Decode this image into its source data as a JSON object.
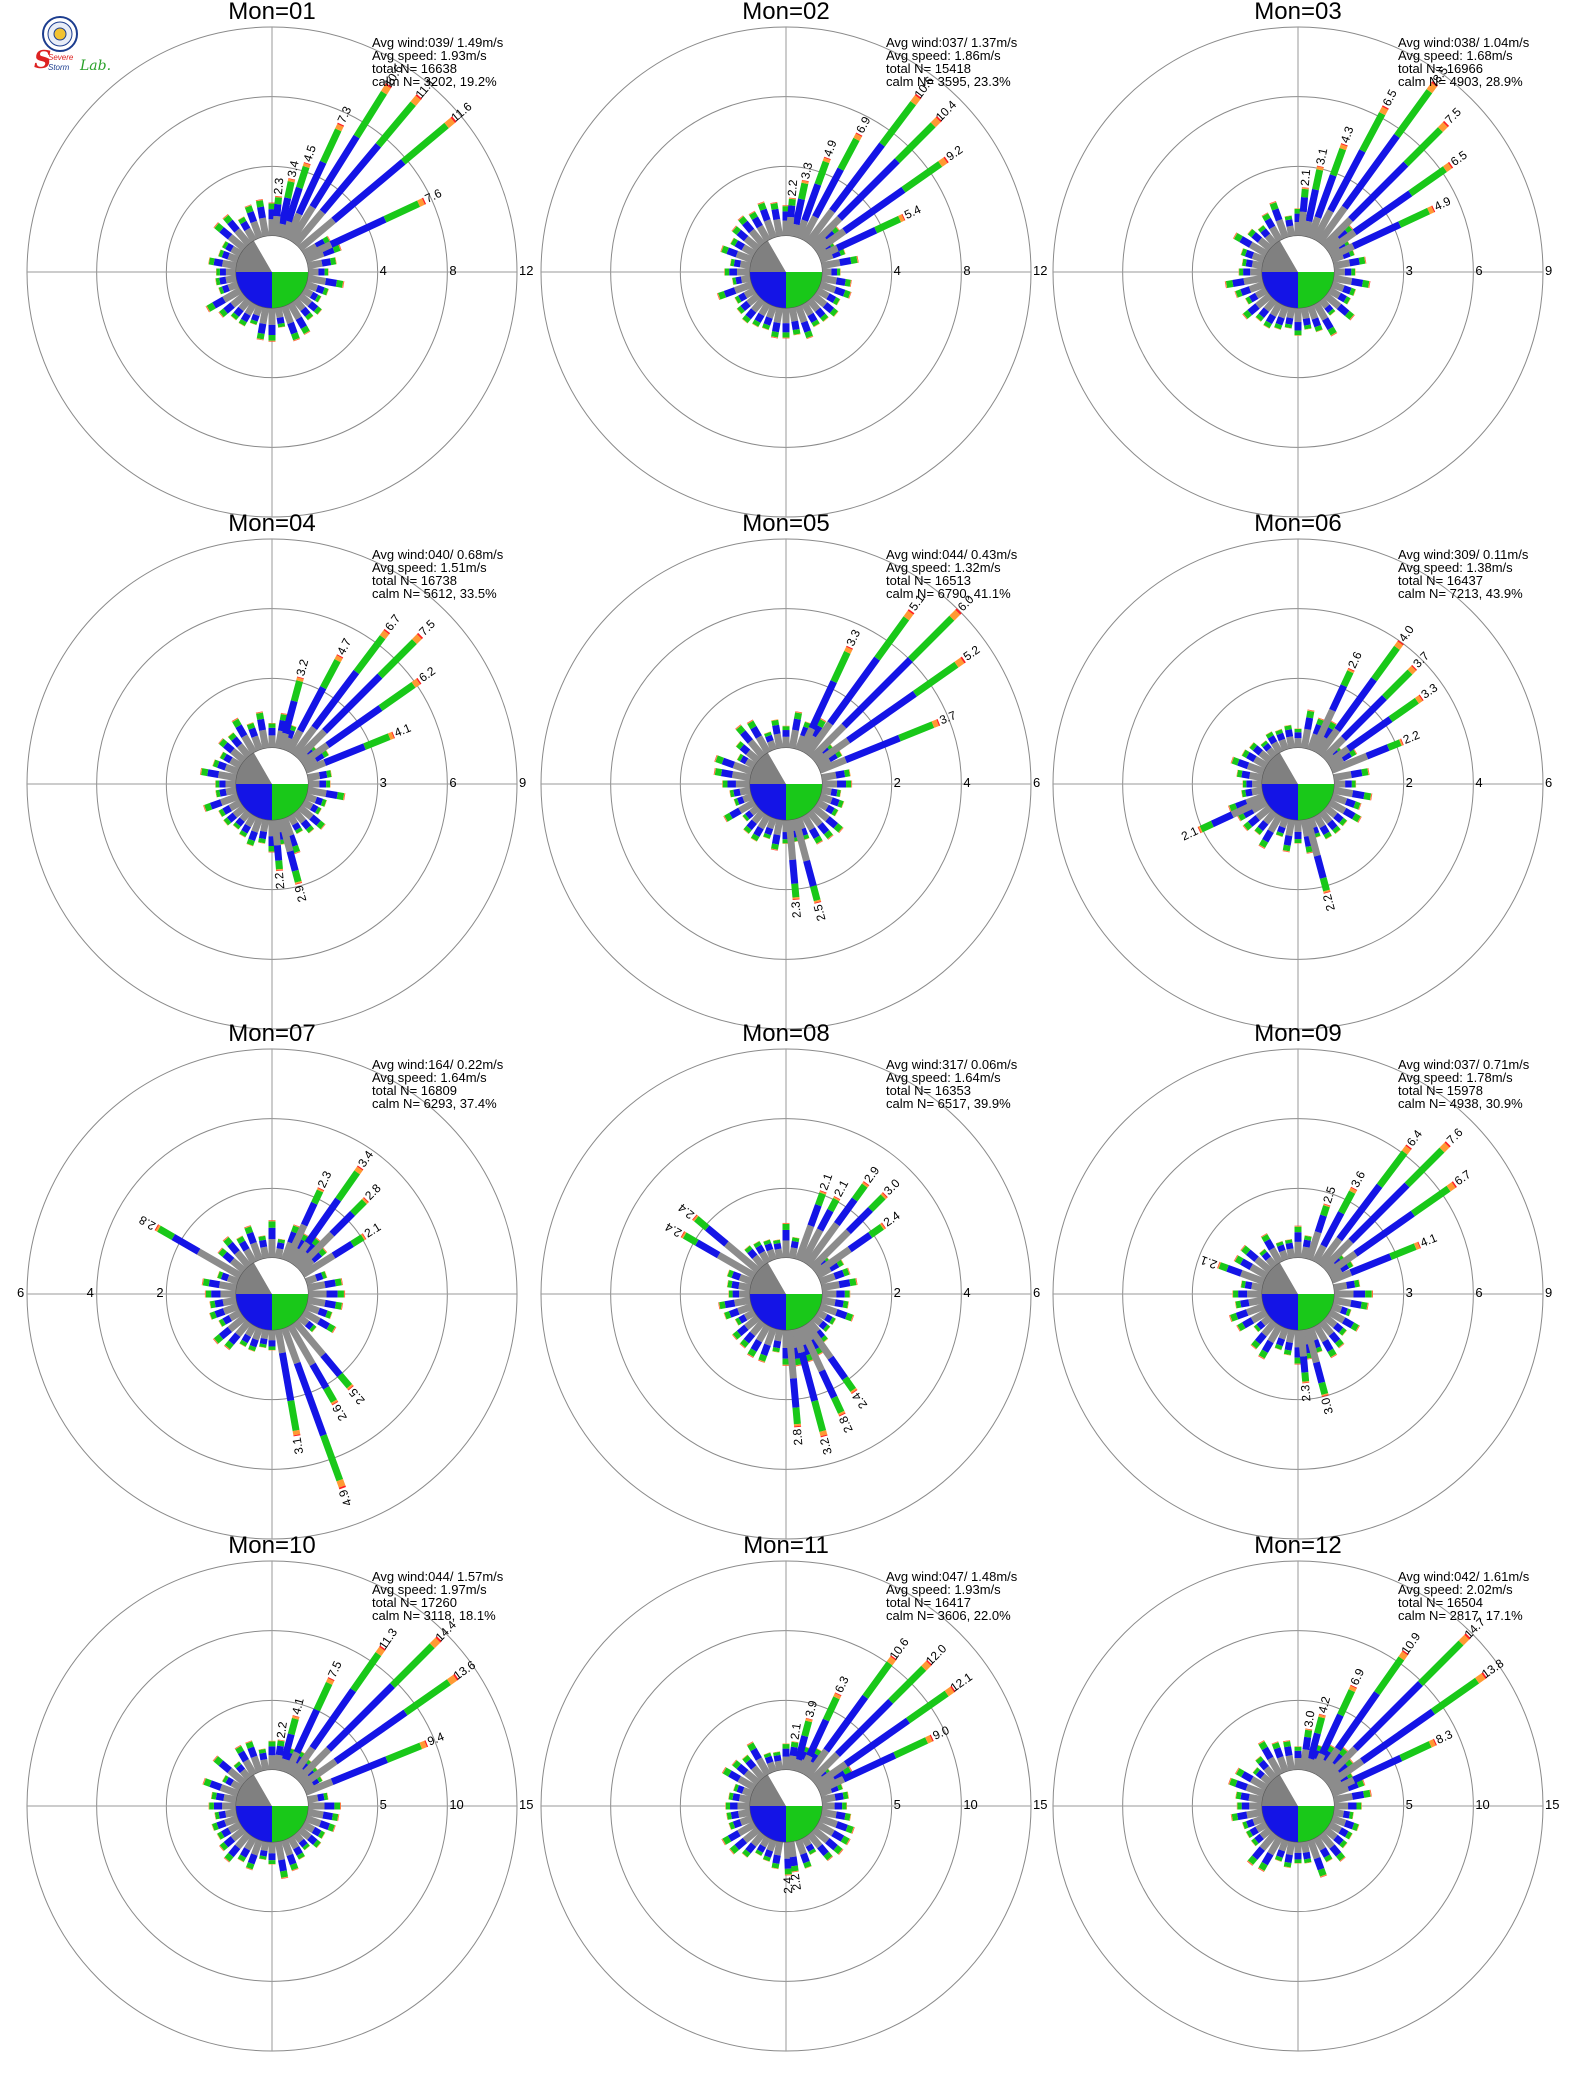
{
  "logo": {
    "line1": "Severe",
    "line2": "Storm",
    "line3": "Lab."
  },
  "labels": {
    "avg_wind": "Avg wind:",
    "avg_speed": "Avg speed: ",
    "total_n": "total N=",
    "calm_n": "calm N="
  },
  "colors": {
    "calm_ring": "#808080",
    "bin1": "#8c8c8c",
    "bin2": "#1414e6",
    "bin3": "#19c819",
    "bin4": "#ff9933",
    "bin5": "#ff2020",
    "axis": "#9a9a9a"
  },
  "chart_data": [
    {
      "type": "wind-rose",
      "title": "Mon=01",
      "avg_wind": "039/ 1.49m/s",
      "avg_speed": "1.93m/s",
      "total_n": "16638",
      "calm_n": "3202,",
      "calm_pct": "19.2%",
      "rmax": 12,
      "ticks": [
        "4",
        "8",
        "12"
      ],
      "ticks_side": "right",
      "petals": [
        {
          "dir": 50,
          "value": 11.6,
          "label": "11.6"
        },
        {
          "dir": 40,
          "value": 11.1,
          "label": "11.1"
        },
        {
          "dir": 32,
          "value": 10.6,
          "label": "10.6"
        },
        {
          "dir": 25,
          "value": 7.3,
          "label": "7.3"
        },
        {
          "dir": 18,
          "value": 4.5,
          "label": "4.5"
        },
        {
          "dir": 12,
          "value": 3.4,
          "label": "3.4"
        },
        {
          "dir": 5,
          "value": 2.3,
          "label": "2.3"
        },
        {
          "dir": 65,
          "value": 7.6,
          "label": "7.6"
        }
      ]
    },
    {
      "type": "wind-rose",
      "title": "Mon=02",
      "avg_wind": "037/ 1.37m/s",
      "avg_speed": "1.86m/s",
      "total_n": "15418",
      "calm_n": "3595,",
      "calm_pct": "23.3%",
      "rmax": 12,
      "ticks": [
        "4",
        "8",
        "12"
      ],
      "ticks_side": "right",
      "petals": [
        {
          "dir": 55,
          "value": 9.2,
          "label": "9.2"
        },
        {
          "dir": 45,
          "value": 10.4,
          "label": "10.4"
        },
        {
          "dir": 37,
          "value": 10.6,
          "label": "10.6"
        },
        {
          "dir": 28,
          "value": 6.9,
          "label": "6.9"
        },
        {
          "dir": 20,
          "value": 4.9,
          "label": "4.9"
        },
        {
          "dir": 12,
          "value": 3.3,
          "label": "3.3"
        },
        {
          "dir": 5,
          "value": 2.2,
          "label": "2.2"
        },
        {
          "dir": 65,
          "value": 5.4,
          "label": "5.4"
        }
      ]
    },
    {
      "type": "wind-rose",
      "title": "Mon=03",
      "avg_wind": "038/ 1.04m/s",
      "avg_speed": "1.68m/s",
      "total_n": "16966",
      "calm_n": "4903,",
      "calm_pct": "28.9%",
      "rmax": 9,
      "ticks": [
        "3",
        "6",
        "9"
      ],
      "ticks_side": "right",
      "petals": [
        {
          "dir": 55,
          "value": 6.5,
          "label": "6.5"
        },
        {
          "dir": 45,
          "value": 7.5,
          "label": "7.5"
        },
        {
          "dir": 36,
          "value": 8.5,
          "label": "8.5"
        },
        {
          "dir": 28,
          "value": 6.5,
          "label": "6.5"
        },
        {
          "dir": 20,
          "value": 4.3,
          "label": "4.3"
        },
        {
          "dir": 12,
          "value": 3.1,
          "label": "3.1"
        },
        {
          "dir": 5,
          "value": 2.1,
          "label": "2.1"
        },
        {
          "dir": 65,
          "value": 4.9,
          "label": "4.9"
        }
      ]
    },
    {
      "type": "wind-rose",
      "title": "Mon=04",
      "avg_wind": "040/ 0.68m/s",
      "avg_speed": "1.51m/s",
      "total_n": "16738",
      "calm_n": "5612,",
      "calm_pct": "33.5%",
      "rmax": 9,
      "ticks": [
        "3",
        "6",
        "9"
      ],
      "ticks_side": "right",
      "petals": [
        {
          "dir": 55,
          "value": 6.2,
          "label": "6.2"
        },
        {
          "dir": 45,
          "value": 7.5,
          "label": "7.5"
        },
        {
          "dir": 37,
          "value": 6.7,
          "label": "6.7"
        },
        {
          "dir": 28,
          "value": 4.7,
          "label": "4.7"
        },
        {
          "dir": 15,
          "value": 3.2,
          "label": "3.2"
        },
        {
          "dir": 68,
          "value": 4.1,
          "label": "4.1"
        },
        {
          "dir": 175,
          "value": 2.2,
          "label": "2.2"
        },
        {
          "dir": 165,
          "value": 2.9,
          "label": "2.9"
        }
      ]
    },
    {
      "type": "wind-rose",
      "title": "Mon=05",
      "avg_wind": "044/ 0.43m/s",
      "avg_speed": "1.32m/s",
      "total_n": "16513",
      "calm_n": "6790,",
      "calm_pct": "41.1%",
      "rmax": 6,
      "ticks": [
        "2",
        "4",
        "6"
      ],
      "ticks_side": "right",
      "petals": [
        {
          "dir": 55,
          "value": 5.2,
          "label": "5.2"
        },
        {
          "dir": 45,
          "value": 6.0,
          "label": "6.0"
        },
        {
          "dir": 36,
          "value": 5.1,
          "label": "5.1"
        },
        {
          "dir": 25,
          "value": 3.3,
          "label": "3.3"
        },
        {
          "dir": 68,
          "value": 3.7,
          "label": "3.7"
        },
        {
          "dir": 175,
          "value": 2.3,
          "label": "2.3"
        },
        {
          "dir": 165,
          "value": 2.5,
          "label": "2.5"
        }
      ]
    },
    {
      "type": "wind-rose",
      "title": "Mon=06",
      "avg_wind": "309/ 0.11m/s",
      "avg_speed": "1.38m/s",
      "total_n": "16437",
      "calm_n": "7213,",
      "calm_pct": "43.9%",
      "rmax": 6,
      "ticks": [
        "2",
        "4",
        "6"
      ],
      "ticks_side": "right",
      "petals": [
        {
          "dir": 55,
          "value": 3.3,
          "label": "3.3"
        },
        {
          "dir": 45,
          "value": 3.7,
          "label": "3.7"
        },
        {
          "dir": 36,
          "value": 4.0,
          "label": "4.0"
        },
        {
          "dir": 25,
          "value": 2.6,
          "label": "2.6"
        },
        {
          "dir": 68,
          "value": 2.2,
          "label": "2.2"
        },
        {
          "dir": 165,
          "value": 2.2,
          "label": "2.2"
        },
        {
          "dir": 245,
          "value": 2.1,
          "label": "2.1"
        }
      ]
    },
    {
      "type": "wind-rose",
      "title": "Mon=07",
      "avg_wind": "164/ 0.22m/s",
      "avg_speed": "1.64m/s",
      "total_n": "16809",
      "calm_n": "6293,",
      "calm_pct": "37.4%",
      "rmax": 6,
      "ticks": [
        "2",
        "4",
        "6"
      ],
      "ticks_side": "left",
      "petals": [
        {
          "dir": 35,
          "value": 3.4,
          "label": "3.4"
        },
        {
          "dir": 25,
          "value": 2.3,
          "label": "2.3"
        },
        {
          "dir": 45,
          "value": 2.8,
          "label": "2.8"
        },
        {
          "dir": 58,
          "value": 2.1,
          "label": "2.1"
        },
        {
          "dir": 300,
          "value": 2.8,
          "label": "2.8"
        },
        {
          "dir": 140,
          "value": 2.5,
          "label": "2.5"
        },
        {
          "dir": 150,
          "value": 2.6,
          "label": "2.6"
        },
        {
          "dir": 170,
          "value": 3.1,
          "label": "3.1"
        },
        {
          "dir": 160,
          "value": 4.9,
          "label": "4.9"
        }
      ]
    },
    {
      "type": "wind-rose",
      "title": "Mon=08",
      "avg_wind": "317/ 0.06m/s",
      "avg_speed": "1.64m/s",
      "total_n": "16353",
      "calm_n": "6517,",
      "calm_pct": "39.9%",
      "rmax": 6,
      "ticks": [
        "2",
        "4",
        "6"
      ],
      "ticks_side": "right",
      "petals": [
        {
          "dir": 20,
          "value": 2.1,
          "label": "2.1"
        },
        {
          "dir": 28,
          "value": 2.1,
          "label": "2.1"
        },
        {
          "dir": 36,
          "value": 2.9,
          "label": "2.9"
        },
        {
          "dir": 45,
          "value": 3.0,
          "label": "3.0"
        },
        {
          "dir": 55,
          "value": 2.4,
          "label": "2.4"
        },
        {
          "dir": 300,
          "value": 2.4,
          "label": "2.4"
        },
        {
          "dir": 310,
          "value": 2.4,
          "label": "2.4"
        },
        {
          "dir": 145,
          "value": 2.4,
          "label": "2.4"
        },
        {
          "dir": 155,
          "value": 2.8,
          "label": "2.8"
        },
        {
          "dir": 165,
          "value": 3.2,
          "label": "3.2"
        },
        {
          "dir": 175,
          "value": 2.8,
          "label": "2.8"
        }
      ]
    },
    {
      "type": "wind-rose",
      "title": "Mon=09",
      "avg_wind": "037/ 0.71m/s",
      "avg_speed": "1.78m/s",
      "total_n": "15978",
      "calm_n": "4938,",
      "calm_pct": "30.9%",
      "rmax": 9,
      "ticks": [
        "3",
        "6",
        "9"
      ],
      "ticks_side": "right",
      "petals": [
        {
          "dir": 55,
          "value": 6.7,
          "label": "6.7"
        },
        {
          "dir": 45,
          "value": 7.6,
          "label": "7.6"
        },
        {
          "dir": 37,
          "value": 6.4,
          "label": "6.4"
        },
        {
          "dir": 28,
          "value": 3.6,
          "label": "3.6"
        },
        {
          "dir": 18,
          "value": 2.5,
          "label": "2.5"
        },
        {
          "dir": 68,
          "value": 4.1,
          "label": "4.1"
        },
        {
          "dir": 290,
          "value": 2.1,
          "label": "2.1"
        },
        {
          "dir": 175,
          "value": 2.3,
          "label": "2.3"
        },
        {
          "dir": 165,
          "value": 3.0,
          "label": "3.0"
        }
      ]
    },
    {
      "type": "wind-rose",
      "title": "Mon=10",
      "avg_wind": "044/ 1.57m/s",
      "avg_speed": "1.97m/s",
      "total_n": "17260",
      "calm_n": "3118,",
      "calm_pct": "18.1%",
      "rmax": 15,
      "ticks": [
        "5",
        "10",
        "15"
      ],
      "ticks_side": "right",
      "petals": [
        {
          "dir": 55,
          "value": 13.6,
          "label": "13.6"
        },
        {
          "dir": 45,
          "value": 14.4,
          "label": "14.4"
        },
        {
          "dir": 35,
          "value": 11.3,
          "label": "11.3"
        },
        {
          "dir": 25,
          "value": 7.5,
          "label": "7.5"
        },
        {
          "dir": 15,
          "value": 4.1,
          "label": "4.1"
        },
        {
          "dir": 8,
          "value": 2.2,
          "label": "2.2"
        },
        {
          "dir": 68,
          "value": 9.4,
          "label": "9.4"
        }
      ]
    },
    {
      "type": "wind-rose",
      "title": "Mon=11",
      "avg_wind": "047/ 1.48m/s",
      "avg_speed": "1.93m/s",
      "total_n": "16417",
      "calm_n": "3606,",
      "calm_pct": "22.0%",
      "rmax": 15,
      "ticks": [
        "5",
        "10",
        "15"
      ],
      "ticks_side": "right",
      "petals": [
        {
          "dir": 55,
          "value": 12.1,
          "label": "12.1"
        },
        {
          "dir": 45,
          "value": 12.0,
          "label": "12.0"
        },
        {
          "dir": 36,
          "value": 10.6,
          "label": "10.6"
        },
        {
          "dir": 25,
          "value": 6.3,
          "label": "6.3"
        },
        {
          "dir": 15,
          "value": 3.9,
          "label": "3.9"
        },
        {
          "dir": 8,
          "value": 2.1,
          "label": "2.1"
        },
        {
          "dir": 65,
          "value": 9.0,
          "label": "9.0"
        },
        {
          "dir": 178,
          "value": 2.4,
          "label": "2.4"
        },
        {
          "dir": 172,
          "value": 2.2,
          "label": "2.2"
        }
      ]
    },
    {
      "type": "wind-rose",
      "title": "Mon=12",
      "avg_wind": "042/ 1.61m/s",
      "avg_speed": "2.02m/s",
      "total_n": "16504",
      "calm_n": "2817,",
      "calm_pct": "17.1%",
      "rmax": 15,
      "ticks": [
        "5",
        "10",
        "15"
      ],
      "ticks_side": "right",
      "petals": [
        {
          "dir": 55,
          "value": 13.8,
          "label": "13.8"
        },
        {
          "dir": 45,
          "value": 14.7,
          "label": "14.7"
        },
        {
          "dir": 35,
          "value": 10.9,
          "label": "10.9"
        },
        {
          "dir": 25,
          "value": 6.9,
          "label": "6.9"
        },
        {
          "dir": 15,
          "value": 4.2,
          "label": "4.2"
        },
        {
          "dir": 8,
          "value": 3.0,
          "label": "3.0"
        },
        {
          "dir": 65,
          "value": 8.3,
          "label": "8.3"
        }
      ]
    }
  ]
}
